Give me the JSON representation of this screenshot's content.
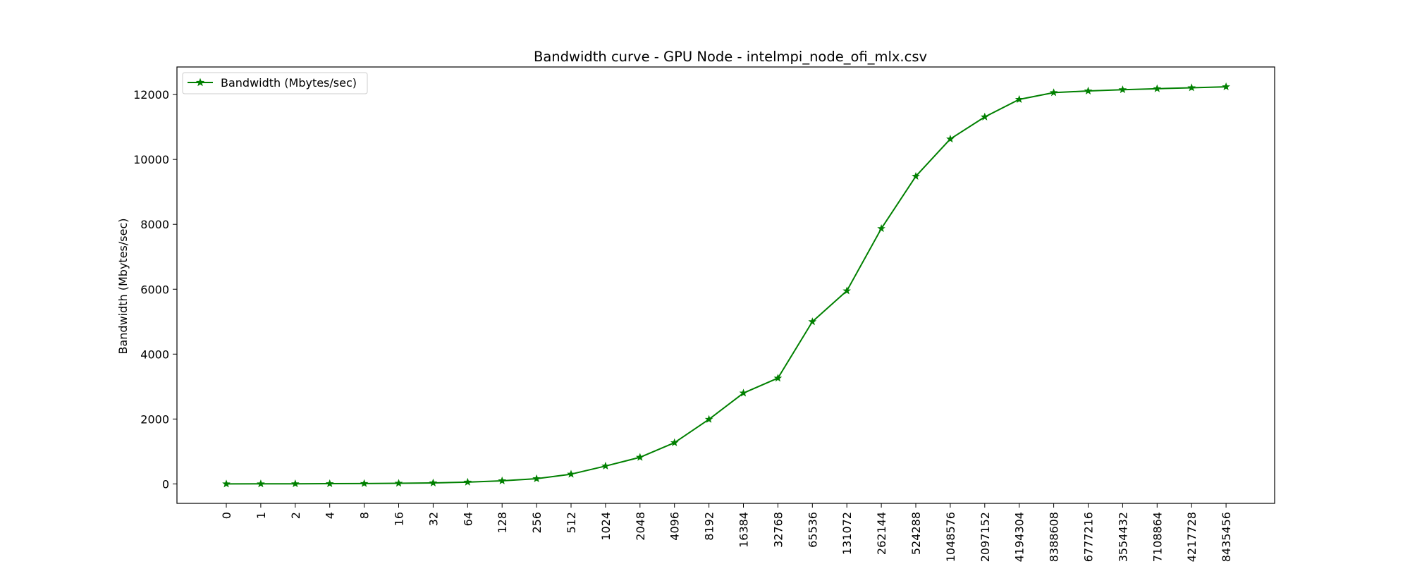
{
  "chart_data": {
    "type": "line",
    "title": "Bandwidth curve - GPU Node - intelmpi_node_ofi_mlx.csv",
    "xlabel": "",
    "ylabel": "Bandwidth (Mbytes/sec)",
    "categories": [
      "0",
      "1",
      "2",
      "4",
      "8",
      "16",
      "32",
      "64",
      "128",
      "256",
      "512",
      "1024",
      "2048",
      "4096",
      "8192",
      "16384",
      "32768",
      "65536",
      "131072",
      "262144",
      "524288",
      "1048576",
      "2097152",
      "4194304",
      "8388608",
      "6777216",
      "3554432",
      "7108864",
      "4217728",
      "8435456"
    ],
    "series": [
      {
        "name": "Bandwidth (Mbytes/sec)",
        "color": "#008000",
        "marker": "star",
        "values": [
          0,
          2,
          4,
          7,
          12,
          20,
          30,
          55,
          95,
          160,
          300,
          550,
          820,
          1270,
          1990,
          2800,
          3260,
          5000,
          5950,
          7870,
          9480,
          10630,
          11310,
          11850,
          12060,
          12110,
          12150,
          12180,
          12210,
          12240
        ]
      }
    ],
    "ylim": [
      -600,
      12850
    ],
    "yticks": [
      0,
      2000,
      4000,
      6000,
      8000,
      10000,
      12000
    ],
    "grid": false,
    "legend_position": "top-left"
  }
}
